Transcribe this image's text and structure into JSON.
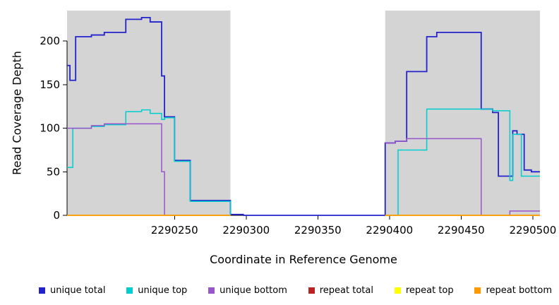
{
  "chart_data": {
    "type": "line",
    "step": true,
    "title": "",
    "xlabel": "Coordinate in Reference Genome",
    "ylabel": "Read Coverage Depth",
    "xlim": [
      2290175,
      2290505
    ],
    "ylim": [
      0,
      235
    ],
    "x_ticks": [
      2290250,
      2290300,
      2290350,
      2290400,
      2290450,
      2290500
    ],
    "y_ticks": [
      0,
      50,
      100,
      150,
      200
    ],
    "grid": false,
    "legend_position": "bottom",
    "plot_background": "#ffffff",
    "shaded_region_color": "#d4d4d4",
    "background_regions": [
      {
        "name": "covered-left",
        "x0": 2290175,
        "x1": 2290289,
        "color": "#d4d4d4"
      },
      {
        "name": "gap",
        "x0": 2290289,
        "x1": 2290397,
        "color": "#ffffff"
      },
      {
        "name": "covered-right",
        "x0": 2290397,
        "x1": 2290505,
        "color": "#d4d4d4"
      }
    ],
    "series": [
      {
        "name": "unique total",
        "color": "#2323cc",
        "width": 1.8,
        "segments": [
          [
            [
              2290175,
              172
            ],
            [
              2290177,
              155
            ],
            [
              2290181,
              205
            ],
            [
              2290192,
              207
            ],
            [
              2290201,
              210
            ],
            [
              2290216,
              225
            ],
            [
              2290227,
              227
            ],
            [
              2290233,
              222
            ],
            [
              2290241,
              160
            ],
            [
              2290243,
              113
            ],
            [
              2290250,
              63
            ],
            [
              2290261,
              17
            ],
            [
              2290289,
              1
            ],
            [
              2290298,
              0
            ],
            [
              2290397,
              83
            ],
            [
              2290404,
              85
            ],
            [
              2290412,
              165
            ],
            [
              2290426,
              205
            ],
            [
              2290433,
              210
            ],
            [
              2290464,
              122
            ],
            [
              2290472,
              118
            ],
            [
              2290476,
              45
            ],
            [
              2290486,
              97
            ],
            [
              2290489,
              93
            ],
            [
              2290494,
              52
            ],
            [
              2290499,
              50
            ],
            [
              2290505,
              50
            ]
          ]
        ]
      },
      {
        "name": "unique top",
        "color": "#00cdcd",
        "width": 1.5,
        "segments": [
          [
            [
              2290175,
              55
            ],
            [
              2290179,
              100
            ],
            [
              2290192,
              102
            ],
            [
              2290201,
              104
            ],
            [
              2290216,
              119
            ],
            [
              2290227,
              121
            ],
            [
              2290233,
              117
            ],
            [
              2290241,
              110
            ],
            [
              2290243,
              112
            ],
            [
              2290250,
              62
            ],
            [
              2290261,
              16
            ],
            [
              2290289,
              0
            ]
          ],
          [
            [
              2290397,
              0
            ],
            [
              2290406,
              75
            ],
            [
              2290426,
              122
            ],
            [
              2290472,
              120
            ],
            [
              2290484,
              40
            ],
            [
              2290486,
              93
            ],
            [
              2290492,
              45
            ],
            [
              2290505,
              45
            ]
          ]
        ]
      },
      {
        "name": "unique bottom",
        "color": "#9955cc",
        "width": 1.5,
        "segments": [
          [
            [
              2290175,
              100
            ],
            [
              2290192,
              103
            ],
            [
              2290201,
              105
            ],
            [
              2290241,
              50
            ],
            [
              2290243,
              0
            ],
            [
              2290289,
              0
            ]
          ],
          [
            [
              2290397,
              83
            ],
            [
              2290404,
              85
            ],
            [
              2290412,
              88
            ],
            [
              2290464,
              0
            ],
            [
              2290484,
              5
            ],
            [
              2290505,
              5
            ]
          ]
        ]
      },
      {
        "name": "repeat total",
        "color": "#bb2222",
        "width": 1.5,
        "segments": [
          [
            [
              2290175,
              0
            ],
            [
              2290289,
              0
            ]
          ],
          [
            [
              2290397,
              0
            ],
            [
              2290505,
              0
            ]
          ]
        ]
      },
      {
        "name": "repeat top",
        "color": "#ffff00",
        "width": 1.5,
        "segments": [
          [
            [
              2290175,
              0
            ],
            [
              2290289,
              0
            ]
          ],
          [
            [
              2290397,
              0
            ],
            [
              2290505,
              0
            ]
          ]
        ]
      },
      {
        "name": "repeat bottom",
        "color": "#ff9900",
        "width": 1.5,
        "segments": [
          [
            [
              2290175,
              0
            ],
            [
              2290289,
              0
            ]
          ],
          [
            [
              2290397,
              0
            ],
            [
              2290505,
              0
            ]
          ]
        ]
      }
    ]
  },
  "legend": {
    "items": [
      {
        "label": "unique total",
        "color": "#2323cc"
      },
      {
        "label": "unique top",
        "color": "#00cdcd"
      },
      {
        "label": "unique bottom",
        "color": "#9955cc"
      },
      {
        "label": "repeat total",
        "color": "#bb2222"
      },
      {
        "label": "repeat top",
        "color": "#ffff00"
      },
      {
        "label": "repeat bottom",
        "color": "#ff9900"
      }
    ]
  }
}
